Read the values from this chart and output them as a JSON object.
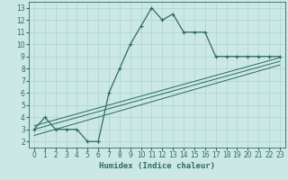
{
  "xlabel": "Humidex (Indice chaleur)",
  "bg_color": "#cce8e4",
  "grid_color": "#aad4cf",
  "line_color": "#2d6b65",
  "xlim": [
    -0.5,
    23.5
  ],
  "ylim": [
    1.5,
    13.5
  ],
  "xticks": [
    0,
    1,
    2,
    3,
    4,
    5,
    6,
    7,
    8,
    9,
    10,
    11,
    12,
    13,
    14,
    15,
    16,
    17,
    18,
    19,
    20,
    21,
    22,
    23
  ],
  "yticks": [
    2,
    3,
    4,
    5,
    6,
    7,
    8,
    9,
    10,
    11,
    12,
    13
  ],
  "main_x": [
    0,
    1,
    2,
    3,
    4,
    5,
    6,
    6,
    7,
    8,
    9,
    10,
    11,
    12,
    13,
    14,
    15,
    16,
    17,
    18,
    19,
    20,
    21,
    22,
    23
  ],
  "main_y": [
    3,
    4,
    3,
    3,
    3,
    2,
    2,
    2,
    6,
    8,
    10,
    11.5,
    13,
    12,
    12.5,
    11,
    11,
    11,
    9,
    9,
    9,
    9,
    9,
    9,
    9
  ],
  "ref_lines": [
    {
      "x": [
        0,
        23
      ],
      "y": [
        2.5,
        8.3
      ]
    },
    {
      "x": [
        0,
        23
      ],
      "y": [
        3.0,
        8.6
      ]
    },
    {
      "x": [
        0,
        23
      ],
      "y": [
        3.3,
        8.9
      ]
    }
  ],
  "fontsize_label": 6.5,
  "fontsize_tick": 5.5,
  "marker_size": 3.0,
  "line_width": 0.9
}
